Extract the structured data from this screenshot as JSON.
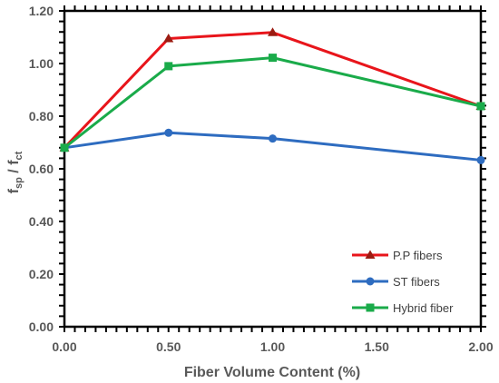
{
  "chart_data": {
    "type": "line",
    "x": [
      0,
      0.5,
      1.0,
      2.0
    ],
    "x_tick_labels": [
      "0.00",
      "0.50",
      "1.00",
      "1.50",
      "2.00"
    ],
    "x_ticks": [
      0,
      0.5,
      1.0,
      1.5,
      2.0
    ],
    "xlim": [
      0,
      2.0
    ],
    "y_tick_labels": [
      "0.00",
      "0.20",
      "0.40",
      "0.60",
      "0.80",
      "1.00",
      "1.20"
    ],
    "y_ticks": [
      0,
      0.2,
      0.4,
      0.6,
      0.8,
      1.0,
      1.2
    ],
    "ylim": [
      0,
      1.2
    ],
    "xlabel": "Fiber Volume Content (%)",
    "ylabel_main": "f",
    "ylabel_sub_num": "sp",
    "ylabel_sep": " / f",
    "ylabel_sub_den": "ct",
    "grid": false,
    "legend_position": "bottom-right",
    "series": [
      {
        "name": "P.P fibers",
        "values": [
          0.68,
          1.095,
          1.118,
          0.838
        ],
        "color": "#e8151b",
        "marker": "triangle",
        "marker_color": "#9c1c12"
      },
      {
        "name": "ST fibers",
        "values": [
          0.68,
          0.737,
          0.715,
          0.633
        ],
        "color": "#2e6cc0",
        "marker": "circle",
        "marker_color": "#2e6cc0"
      },
      {
        "name": "Hybrid fiber",
        "values": [
          0.68,
          0.99,
          1.022,
          0.838
        ],
        "color": "#1aab4a",
        "marker": "square",
        "marker_color": "#1aab4a"
      }
    ]
  }
}
